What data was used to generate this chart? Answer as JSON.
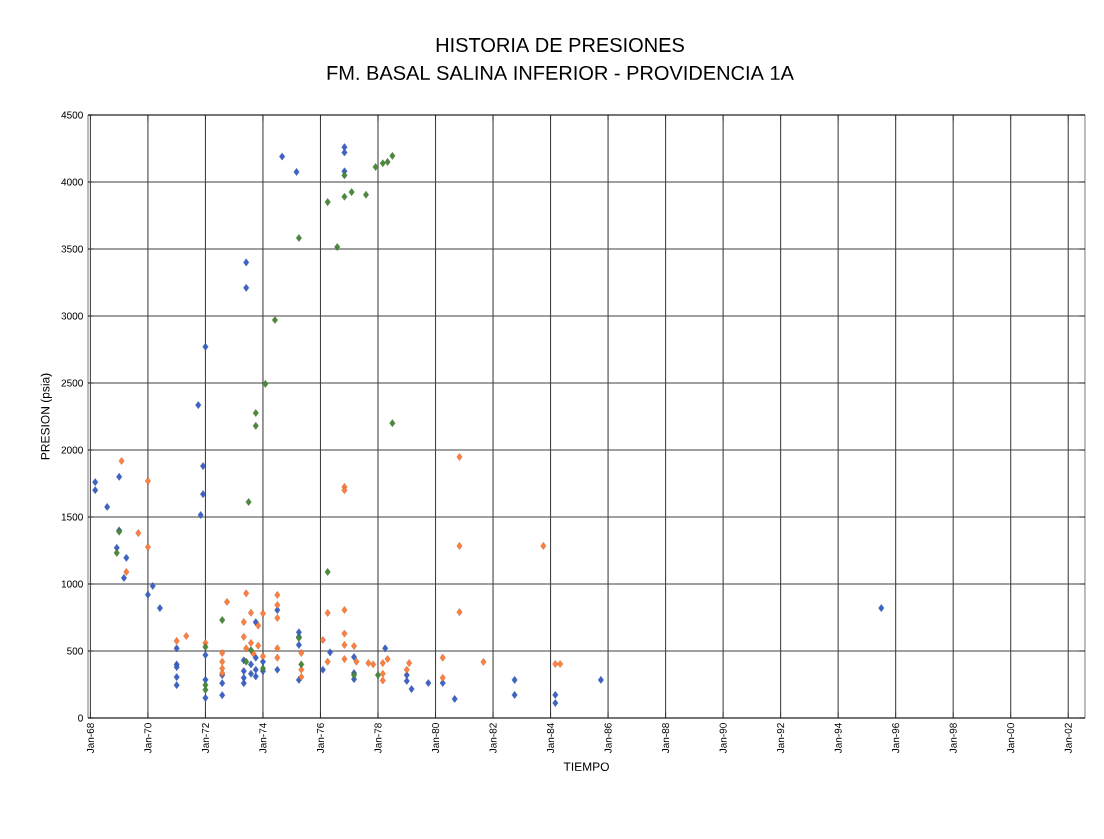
{
  "chart_data": {
    "type": "scatter",
    "title": "HISTORIA DE PRESIONES",
    "subtitle": "FM. BASAL SALINA INFERIOR - PROVIDENCIA 1A",
    "xlabel": "TIEMPO",
    "ylabel": "PRESION (psia)",
    "xlim": [
      "1967-12",
      "2002-08"
    ],
    "ylim": [
      0,
      4500
    ],
    "xticks": [
      {
        "value": "1968-01",
        "label": "Jan-68"
      },
      {
        "value": "1970-01",
        "label": "Jan-70"
      },
      {
        "value": "1972-01",
        "label": "Jan-72"
      },
      {
        "value": "1974-01",
        "label": "Jan-74"
      },
      {
        "value": "1976-01",
        "label": "Jan-76"
      },
      {
        "value": "1978-01",
        "label": "Jan-78"
      },
      {
        "value": "1980-01",
        "label": "Jan-80"
      },
      {
        "value": "1982-01",
        "label": "Jan-82"
      },
      {
        "value": "1984-01",
        "label": "Jan-84"
      },
      {
        "value": "1986-01",
        "label": "Jan-86"
      },
      {
        "value": "1988-01",
        "label": "Jan-88"
      },
      {
        "value": "1990-01",
        "label": "Jan-90"
      },
      {
        "value": "1992-01",
        "label": "Jan-92"
      },
      {
        "value": "1994-01",
        "label": "Jan-94"
      },
      {
        "value": "1996-01",
        "label": "Jan-96"
      },
      {
        "value": "1998-01",
        "label": "Jan-98"
      },
      {
        "value": "2000-01",
        "label": "Jan-00"
      },
      {
        "value": "2002-01",
        "label": "Jan-02"
      }
    ],
    "yticks": [
      0,
      500,
      1000,
      1500,
      2000,
      2500,
      3000,
      3500,
      4000,
      4500
    ],
    "grid": true,
    "marker": "diamond",
    "series": [
      {
        "color": "#3c64c8",
        "x": [
          "1968-03",
          "1968-03",
          "1968-08",
          "1969-01",
          "1969-01",
          "1968-12",
          "1969-04",
          "1969-03",
          "1970-01",
          "1970-03",
          "1970-06",
          "1971-01",
          "1971-01",
          "1971-01",
          "1971-01",
          "1971-01",
          "1971-10",
          "1972-01",
          "1971-12",
          "1971-12",
          "1971-11",
          "1972-01",
          "1972-01",
          "1972-01",
          "1972-08",
          "1972-08",
          "1972-08",
          "1973-06",
          "1973-06",
          "1973-05",
          "1973-05",
          "1973-05",
          "1973-05",
          "1973-08",
          "1973-08",
          "1973-10",
          "1973-10",
          "1973-10",
          "1973-10",
          "1974-01",
          "1974-01",
          "1974-07",
          "1974-07",
          "1974-09",
          "1975-03",
          "1975-04",
          "1975-04",
          "1975-04",
          "1975-04",
          "1976-02",
          "1976-05",
          "1976-11",
          "1976-11",
          "1976-11",
          "1977-03",
          "1977-03",
          "1977-03",
          "1978-04",
          "1979-01",
          "1979-01",
          "1979-03",
          "1979-10",
          "1980-04",
          "1980-09",
          "1982-10",
          "1982-10",
          "1984-03",
          "1984-03",
          "1985-10",
          "1995-07"
        ],
        "values": [
          1760,
          1700,
          1575,
          1800,
          1400,
          1270,
          1195,
          1045,
          920,
          985,
          820,
          520,
          400,
          380,
          305,
          245,
          2335,
          2770,
          1880,
          1670,
          1515,
          470,
          285,
          150,
          320,
          260,
          170,
          3400,
          3210,
          430,
          350,
          300,
          260,
          400,
          330,
          715,
          450,
          360,
          310,
          420,
          350,
          805,
          360,
          4190,
          4075,
          640,
          605,
          545,
          284,
          360,
          490,
          4260,
          4220,
          4080,
          455,
          335,
          290,
          520,
          320,
          276,
          216,
          261,
          261,
          142,
          284,
          172,
          172,
          112,
          284,
          820
        ]
      },
      {
        "color": "#ff7f3f",
        "x": [
          "1969-02",
          "1970-01",
          "1969-09",
          "1970-01",
          "1969-04",
          "1971-01",
          "1971-05",
          "1972-01",
          "1972-08",
          "1972-08",
          "1972-08",
          "1972-08",
          "1972-10",
          "1973-06",
          "1973-05",
          "1973-05",
          "1973-06",
          "1973-08",
          "1973-08",
          "1973-09",
          "1973-11",
          "1973-11",
          "1974-01",
          "1974-01",
          "1974-07",
          "1974-07",
          "1974-07",
          "1974-07",
          "1974-07",
          "1975-05",
          "1975-05",
          "1975-05",
          "1976-02",
          "1976-04",
          "1976-04",
          "1976-11",
          "1976-11",
          "1976-11",
          "1976-11",
          "1976-11",
          "1976-11",
          "1977-03",
          "1977-04",
          "1977-09",
          "1977-11",
          "1978-03",
          "1978-05",
          "1978-03",
          "1978-03",
          "1979-02",
          "1979-01",
          "1980-04",
          "1980-04",
          "1980-11",
          "1980-11",
          "1980-11",
          "1981-09",
          "1983-10",
          "1984-03",
          "1984-05"
        ],
        "values": [
          1918,
          1769,
          1380,
          1276,
          1090,
          575,
          612,
          560,
          485,
          420,
          370,
          335,
          866,
          930,
          716,
          605,
          520,
          785,
          560,
          480,
          690,
          540,
          780,
          460,
          918,
          843,
          746,
          520,
          450,
          485,
          306,
          360,
          582,
          784,
          420,
          1724,
          1700,
          806,
          630,
          545,
          440,
          537,
          420,
          410,
          400,
          410,
          440,
          330,
          280,
          410,
          360,
          450,
          300,
          1948,
          1284,
          790,
          418,
          1284,
          403,
          403
        ]
      },
      {
        "color": "#4a8a3a",
        "x": [
          "1969-01",
          "1968-12",
          "1972-01",
          "1972-01",
          "1972-01",
          "1972-08",
          "1973-06",
          "1973-07",
          "1973-08",
          "1973-10",
          "1973-10",
          "1974-01",
          "1974-02",
          "1974-06",
          "1975-04",
          "1975-04",
          "1975-05",
          "1976-04",
          "1976-04",
          "1976-08",
          "1976-11",
          "1976-11",
          "1977-02",
          "1977-03",
          "1977-08",
          "1977-12",
          "1978-03",
          "1978-05",
          "1978-07",
          "1978-07",
          "1978-01"
        ],
        "values": [
          1390,
          1232,
          530,
          246,
          210,
          731,
          420,
          1612,
          507,
          2276,
          2180,
          370,
          2493,
          2970,
          3582,
          597,
          400,
          3850,
          1090,
          3515,
          3890,
          4050,
          3925,
          320,
          3905,
          4112,
          4140,
          4150,
          4195,
          2200,
          320
        ]
      }
    ]
  }
}
